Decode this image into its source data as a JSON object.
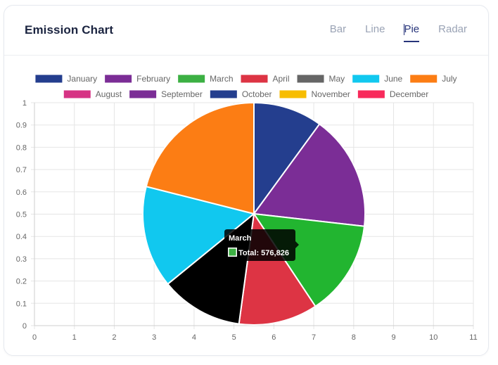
{
  "header": {
    "title": "Emission Chart",
    "tabs": [
      {
        "label": "Bar",
        "active": false
      },
      {
        "label": "Line",
        "active": false
      },
      {
        "label": "Pie",
        "active": true
      },
      {
        "label": "Radar",
        "active": false
      }
    ]
  },
  "colors": {
    "tab_active": "#27347a",
    "tab_inactive": "#9aa3b5",
    "tooltip_bg": "#000000"
  },
  "tooltip": {
    "title": "March",
    "label": "Total: 576,826",
    "swatch_color": "#3cb043"
  },
  "chart_data": {
    "type": "pie",
    "x_ticks": [
      "0",
      "1",
      "2",
      "3",
      "4",
      "5",
      "6",
      "7",
      "8",
      "9",
      "10",
      "11"
    ],
    "y_ticks": [
      "0",
      "0.1",
      "0.2",
      "0.3",
      "0.4",
      "0.5",
      "0.6",
      "0.7",
      "0.8",
      "0.9",
      "1"
    ],
    "xlim": [
      0,
      11
    ],
    "ylim": [
      0,
      1
    ],
    "grid": true,
    "legend_position": "top",
    "slices": [
      {
        "label": "January",
        "color": "#243e8e",
        "value": 10.5
      },
      {
        "label": "February",
        "color": "#7b2d96",
        "value": 17.5
      },
      {
        "label": "March",
        "color": "#22b530",
        "value": 14.5,
        "legend_color": "#3cb043"
      },
      {
        "label": "April",
        "color": "#dd3444",
        "value": 12.0
      },
      {
        "label": "May",
        "color": "#000000",
        "value": 12.5,
        "legend_color": "#666666"
      },
      {
        "label": "June",
        "color": "#11c8ef",
        "value": 15.5
      },
      {
        "label": "July",
        "color": "#fc7d14",
        "value": 22.0
      },
      {
        "label": "August",
        "color": "#d63384",
        "value": null
      },
      {
        "label": "September",
        "color": "#7b2d96",
        "value": null
      },
      {
        "label": "October",
        "color": "#243e8e",
        "value": null
      },
      {
        "label": "November",
        "color": "#f7bd00",
        "value": null
      },
      {
        "label": "December",
        "color": "#f82a5b",
        "value": null
      }
    ]
  }
}
